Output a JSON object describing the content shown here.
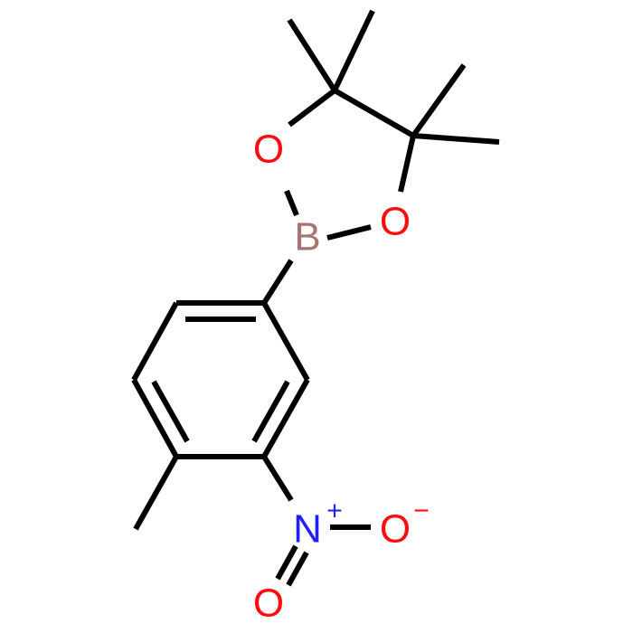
{
  "atoms": [
    {
      "label": "O"
    },
    {
      "label": "B"
    },
    {
      "label": "O"
    },
    {
      "label": "N",
      "charge": "+"
    },
    {
      "label": "O",
      "charge": "−"
    },
    {
      "label": "O"
    }
  ]
}
